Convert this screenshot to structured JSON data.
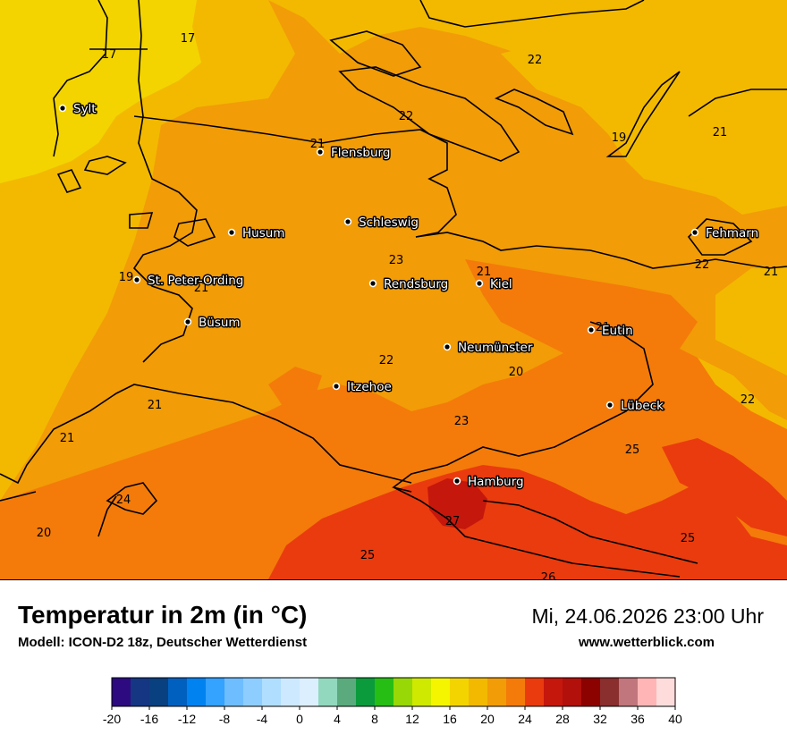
{
  "header": {
    "title": "Temperatur in 2m (in °C)",
    "model": "Modell: ICON-D2 18z, Deutscher Wetterdienst",
    "datetime": "Mi, 24.06.2026 23:00 Uhr",
    "website": "www.wetterblick.com"
  },
  "cities": [
    {
      "name": "Sylt"
    },
    {
      "name": "Flensburg"
    },
    {
      "name": "Schleswig"
    },
    {
      "name": "Husum"
    },
    {
      "name": "Fehmarn"
    },
    {
      "name": "St. Peter-Ording"
    },
    {
      "name": "Rendsburg"
    },
    {
      "name": "Kiel"
    },
    {
      "name": "Büsum"
    },
    {
      "name": "Neumünster"
    },
    {
      "name": "Eutin"
    },
    {
      "name": "Itzehoe"
    },
    {
      "name": "Lübeck"
    },
    {
      "name": "Hamburg"
    }
  ],
  "isotherm_labels": [
    "17",
    "17",
    "22",
    "22",
    "19",
    "21",
    "21",
    "23",
    "21",
    "19",
    "21",
    "22",
    "21",
    "20",
    "22",
    "21",
    "23",
    "22",
    "21",
    "25",
    "24",
    "27",
    "20",
    "25",
    "25",
    "26",
    "21"
  ],
  "legend": {
    "colors": [
      "#2d0a80",
      "#143683",
      "#084080",
      "#0060c0",
      "#0082f0",
      "#34a2ff",
      "#6ebdff",
      "#8ecdff",
      "#b0deff",
      "#cde9ff",
      "#dcefff",
      "#91d8be",
      "#5aaa7e",
      "#0b9b3d",
      "#26bd14",
      "#97d806",
      "#cfe900",
      "#f5f500",
      "#f3d400",
      "#f3b900",
      "#f29c07",
      "#f47b0a",
      "#ea3b0e",
      "#c5170c",
      "#b1100b",
      "#8b0200",
      "#8a2e2e",
      "#c1757c",
      "#ffb5b5",
      "#ffdcdc"
    ],
    "ticks": [
      "-20",
      "-16",
      "-12",
      "-8",
      "-4",
      "0",
      "4",
      "8",
      "12",
      "16",
      "20",
      "24",
      "28",
      "32",
      "36",
      "40"
    ]
  }
}
